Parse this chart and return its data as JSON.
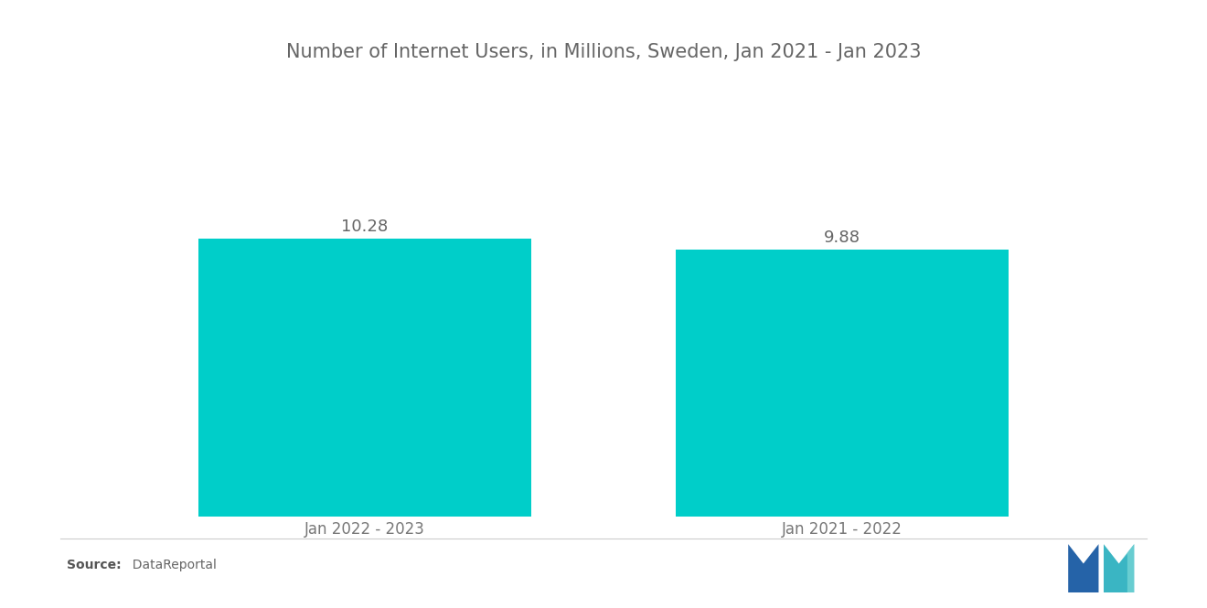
{
  "title": "Number of Internet Users, in Millions, Sweden, Jan 2021 - Jan 2023",
  "categories": [
    "Jan 2022 - 2023",
    "Jan 2021 - 2022"
  ],
  "values": [
    10.28,
    9.88
  ],
  "bar_color": "#00CEC9",
  "background_color": "#ffffff",
  "title_fontsize": 15,
  "label_fontsize": 12,
  "value_fontsize": 13,
  "source_bold": "Source:",
  "source_normal": "  DataReportal",
  "ylim": [
    0,
    13.5
  ],
  "bar_width": 0.32,
  "x_positions": [
    0.27,
    0.73
  ],
  "xlim": [
    0.0,
    1.0
  ]
}
